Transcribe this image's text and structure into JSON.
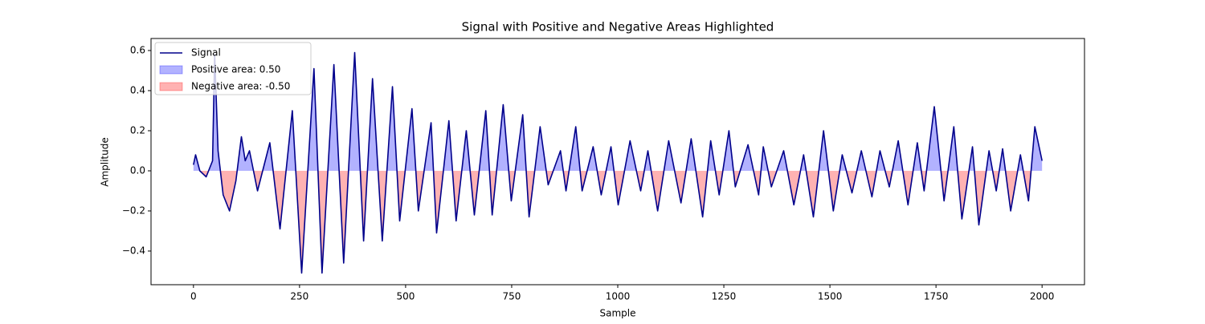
{
  "chart_data": {
    "type": "line",
    "title": "Signal with Positive and Negative Areas Highlighted",
    "x_label": "Sample",
    "y_label": "Amplitude",
    "xlim": [
      -100,
      2100
    ],
    "ylim": [
      -0.568,
      0.66
    ],
    "xticks": [
      0,
      250,
      500,
      750,
      1000,
      1250,
      1500,
      1750,
      2000
    ],
    "yticks": [
      {
        "value": -0.4,
        "label": "−0.4"
      },
      {
        "value": -0.2,
        "label": "−0.2"
      },
      {
        "value": 0,
        "label": "0.0"
      },
      0.2,
      0.4,
      0.6
    ],
    "legend": "upper left",
    "x": [
      0,
      5,
      15,
      30,
      45,
      50,
      58,
      70,
      85,
      100,
      113,
      122,
      132,
      151,
      180,
      204,
      233,
      255,
      284,
      303,
      331,
      354,
      380,
      401,
      422,
      445,
      469,
      486,
      515,
      530,
      560,
      573,
      602,
      619,
      643,
      662,
      689,
      704,
      730,
      749,
      776,
      791,
      817,
      836,
      865,
      878,
      901,
      916,
      942,
      961,
      984,
      1001,
      1029,
      1054,
      1071,
      1094,
      1120,
      1149,
      1173,
      1200,
      1219,
      1239,
      1262,
      1277,
      1307,
      1332,
      1343,
      1362,
      1391,
      1415,
      1438,
      1461,
      1485,
      1508,
      1529,
      1552,
      1574,
      1599,
      1618,
      1640,
      1661,
      1684,
      1706,
      1722,
      1746,
      1769,
      1792,
      1811,
      1836,
      1851,
      1875,
      1892,
      1907,
      1926,
      1949,
      1968,
      1983,
      2000
    ],
    "series": [
      {
        "name": "Signal",
        "color": "#00008b",
        "values": [
          0.03,
          0.08,
          0.0,
          -0.03,
          0.05,
          0.58,
          0.1,
          -0.12,
          -0.2,
          -0.05,
          0.17,
          0.05,
          0.1,
          -0.1,
          0.14,
          -0.29,
          0.3,
          -0.51,
          0.51,
          -0.51,
          0.53,
          -0.46,
          0.59,
          -0.35,
          0.46,
          -0.35,
          0.42,
          -0.25,
          0.31,
          -0.2,
          0.24,
          -0.31,
          0.25,
          -0.25,
          0.2,
          -0.22,
          0.3,
          -0.22,
          0.33,
          -0.15,
          0.28,
          -0.23,
          0.22,
          -0.07,
          0.1,
          -0.1,
          0.22,
          -0.1,
          0.12,
          -0.12,
          0.12,
          -0.17,
          0.15,
          -0.1,
          0.1,
          -0.2,
          0.15,
          -0.16,
          0.16,
          -0.23,
          0.15,
          -0.12,
          0.2,
          -0.08,
          0.13,
          -0.12,
          0.12,
          -0.08,
          0.1,
          -0.17,
          0.08,
          -0.23,
          0.2,
          -0.2,
          0.08,
          -0.11,
          0.1,
          -0.13,
          0.1,
          -0.08,
          0.15,
          -0.17,
          0.14,
          -0.1,
          0.32,
          -0.15,
          0.22,
          -0.24,
          0.12,
          -0.27,
          0.1,
          -0.1,
          0.11,
          -0.2,
          0.08,
          -0.15,
          0.22,
          0.05
        ]
      }
    ],
    "fills": [
      {
        "name": "Positive area: 0.50",
        "color": "#0000ff"
      },
      {
        "name": "Negative area: -0.50",
        "color": "#ff0000"
      }
    ]
  }
}
